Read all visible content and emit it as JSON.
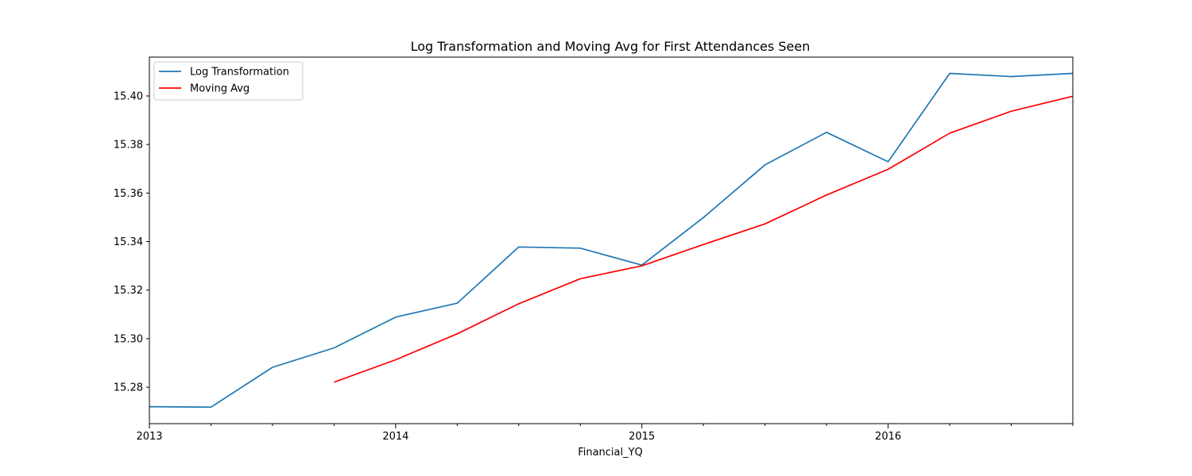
{
  "chart_data": {
    "type": "line",
    "title": "Log Transformation and Moving Avg for First Attendances Seen",
    "xlabel": "Financial_YQ",
    "ylabel": "",
    "x": [
      "2013Q1",
      "2013Q2",
      "2013Q3",
      "2013Q4",
      "2014Q1",
      "2014Q2",
      "2014Q3",
      "2014Q4",
      "2015Q1",
      "2015Q2",
      "2015Q3",
      "2015Q4",
      "2016Q1",
      "2016Q2",
      "2016Q3",
      "2016Q4"
    ],
    "x_tick_labels": [
      "2013",
      "2014",
      "2015",
      "2016"
    ],
    "xlim": [
      "2013Q1",
      "2016Q4"
    ],
    "ylim": [
      15.265,
      15.416
    ],
    "y_ticks": [
      "15.28",
      "15.30",
      "15.32",
      "15.34",
      "15.36",
      "15.38",
      "15.40"
    ],
    "grid": false,
    "legend_position": "upper-left",
    "series": [
      {
        "name": "Log Transformation",
        "color": "#1f77b4",
        "values": [
          15.272,
          15.2718,
          15.2882,
          15.2962,
          15.3089,
          15.3146,
          15.3378,
          15.3373,
          15.3303,
          15.3499,
          15.3716,
          15.385,
          15.3729,
          15.4093,
          15.408,
          15.4093
        ]
      },
      {
        "name": "Moving Avg",
        "color": "#ff0000",
        "values": [
          null,
          null,
          null,
          15.2821,
          15.2913,
          15.302,
          15.3144,
          15.3247,
          15.33,
          15.3388,
          15.3473,
          15.3592,
          15.3698,
          15.3847,
          15.3937,
          15.3999
        ]
      }
    ]
  }
}
